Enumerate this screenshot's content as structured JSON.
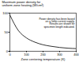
{
  "chart_data": {
    "type": "line",
    "y_label": "Maximum power density for uniform zone heating (W/cm²)",
    "x_label": "Zone centering temperature (K)",
    "annotation": "Power density has been based on a 5mm current supply. Results are shown for specimen length indicated.",
    "x": [
      0,
      50,
      100,
      150,
      200,
      250,
      300,
      350,
      400
    ],
    "values": [
      95,
      55,
      35,
      24,
      17,
      13,
      10,
      8,
      7
    ],
    "color": "#000000",
    "xlim": [
      0,
      400
    ],
    "xticks": [
      0,
      100,
      200,
      300,
      400
    ],
    "ylim": [
      0,
      100
    ],
    "yticks": [
      0,
      50,
      100
    ],
    "grid": false
  }
}
